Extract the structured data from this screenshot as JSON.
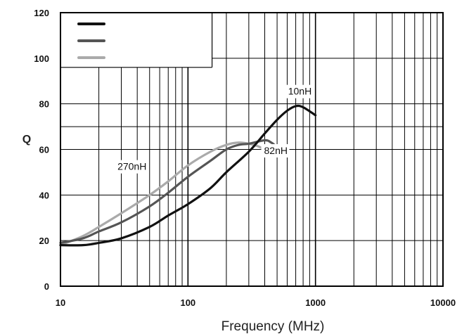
{
  "chart_data": {
    "type": "line",
    "title": "",
    "xlabel": "Frequency (MHz)",
    "ylabel": "Q",
    "xscale": "log",
    "xlim": [
      10,
      10000
    ],
    "ylim": [
      0,
      120
    ],
    "xticks": [
      "10",
      "100",
      "1000",
      "10000"
    ],
    "yticks": [
      "0",
      "20",
      "40",
      "60",
      "80",
      "100",
      "120"
    ],
    "grid": true,
    "legend_position": "top-left",
    "series": [
      {
        "name": "10nH",
        "color": "#111111",
        "x": [
          10,
          15,
          20,
          30,
          50,
          70,
          100,
          150,
          200,
          300,
          400,
          500,
          600,
          700,
          800,
          1000
        ],
        "y": [
          18,
          18,
          19,
          21,
          26,
          31,
          36,
          43,
          50,
          59,
          67,
          73,
          77,
          79,
          78.5,
          75
        ]
      },
      {
        "name": "82nH",
        "color": "#555555",
        "x": [
          10,
          15,
          20,
          30,
          50,
          70,
          100,
          150,
          200,
          250,
          300,
          400,
          450,
          500
        ],
        "y": [
          19,
          21,
          24,
          28,
          35,
          41,
          48,
          55,
          60,
          62,
          62.5,
          64,
          63,
          61
        ]
      },
      {
        "name": "270nH",
        "color": "#aaaaaa",
        "x": [
          10,
          15,
          20,
          30,
          50,
          70,
          100,
          150,
          200,
          250,
          300,
          350,
          400
        ],
        "y": [
          18,
          22,
          26,
          32,
          40,
          46,
          53,
          59,
          62,
          63,
          62.5,
          61.5,
          60
        ]
      }
    ],
    "annotations": [
      {
        "text": "10nH",
        "series": "10nH"
      },
      {
        "text": "82nH",
        "series": "82nH"
      },
      {
        "text": "270nH",
        "series": "270nH"
      }
    ]
  }
}
